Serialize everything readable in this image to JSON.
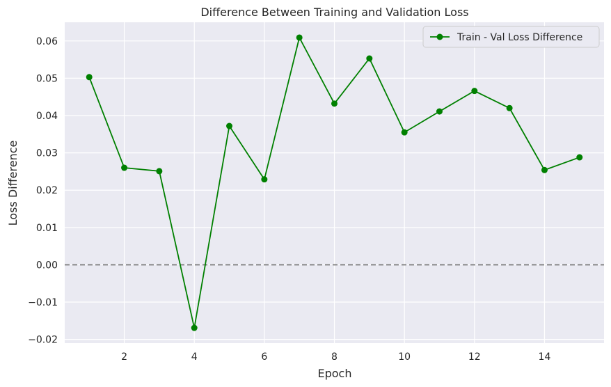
{
  "chart_data": {
    "type": "line",
    "title": "Difference Between Training and Validation Loss",
    "xlabel": "Epoch",
    "ylabel": "Loss Difference",
    "x": [
      1,
      2,
      3,
      4,
      5,
      6,
      7,
      8,
      9,
      10,
      11,
      12,
      13,
      14,
      15
    ],
    "series": [
      {
        "name": "Train - Val Loss Difference",
        "color": "#008000",
        "marker": "circle",
        "values": [
          0.0503,
          0.026,
          0.0251,
          -0.0169,
          0.0372,
          0.0229,
          0.0609,
          0.0432,
          0.0553,
          0.0355,
          0.0411,
          0.0466,
          0.042,
          0.0254,
          0.0288
        ]
      }
    ],
    "xlim": [
      0.3,
      15.7
    ],
    "ylim": [
      -0.021,
      0.065
    ],
    "xticks": [
      2,
      4,
      6,
      8,
      10,
      12,
      14
    ],
    "xtick_labels": [
      "2",
      "4",
      "6",
      "8",
      "10",
      "12",
      "14"
    ],
    "yticks": [
      -0.02,
      -0.01,
      0.0,
      0.01,
      0.02,
      0.03,
      0.04,
      0.05,
      0.06
    ],
    "ytick_labels": [
      "−0.02",
      "−0.01",
      "0.00",
      "0.01",
      "0.02",
      "0.03",
      "0.04",
      "0.05",
      "0.06"
    ],
    "reference_line": {
      "y": 0.0,
      "style": "dashed",
      "color": "#808080"
    },
    "grid": true,
    "legend_position": "top-right",
    "background_color": "#eaeaf2"
  }
}
